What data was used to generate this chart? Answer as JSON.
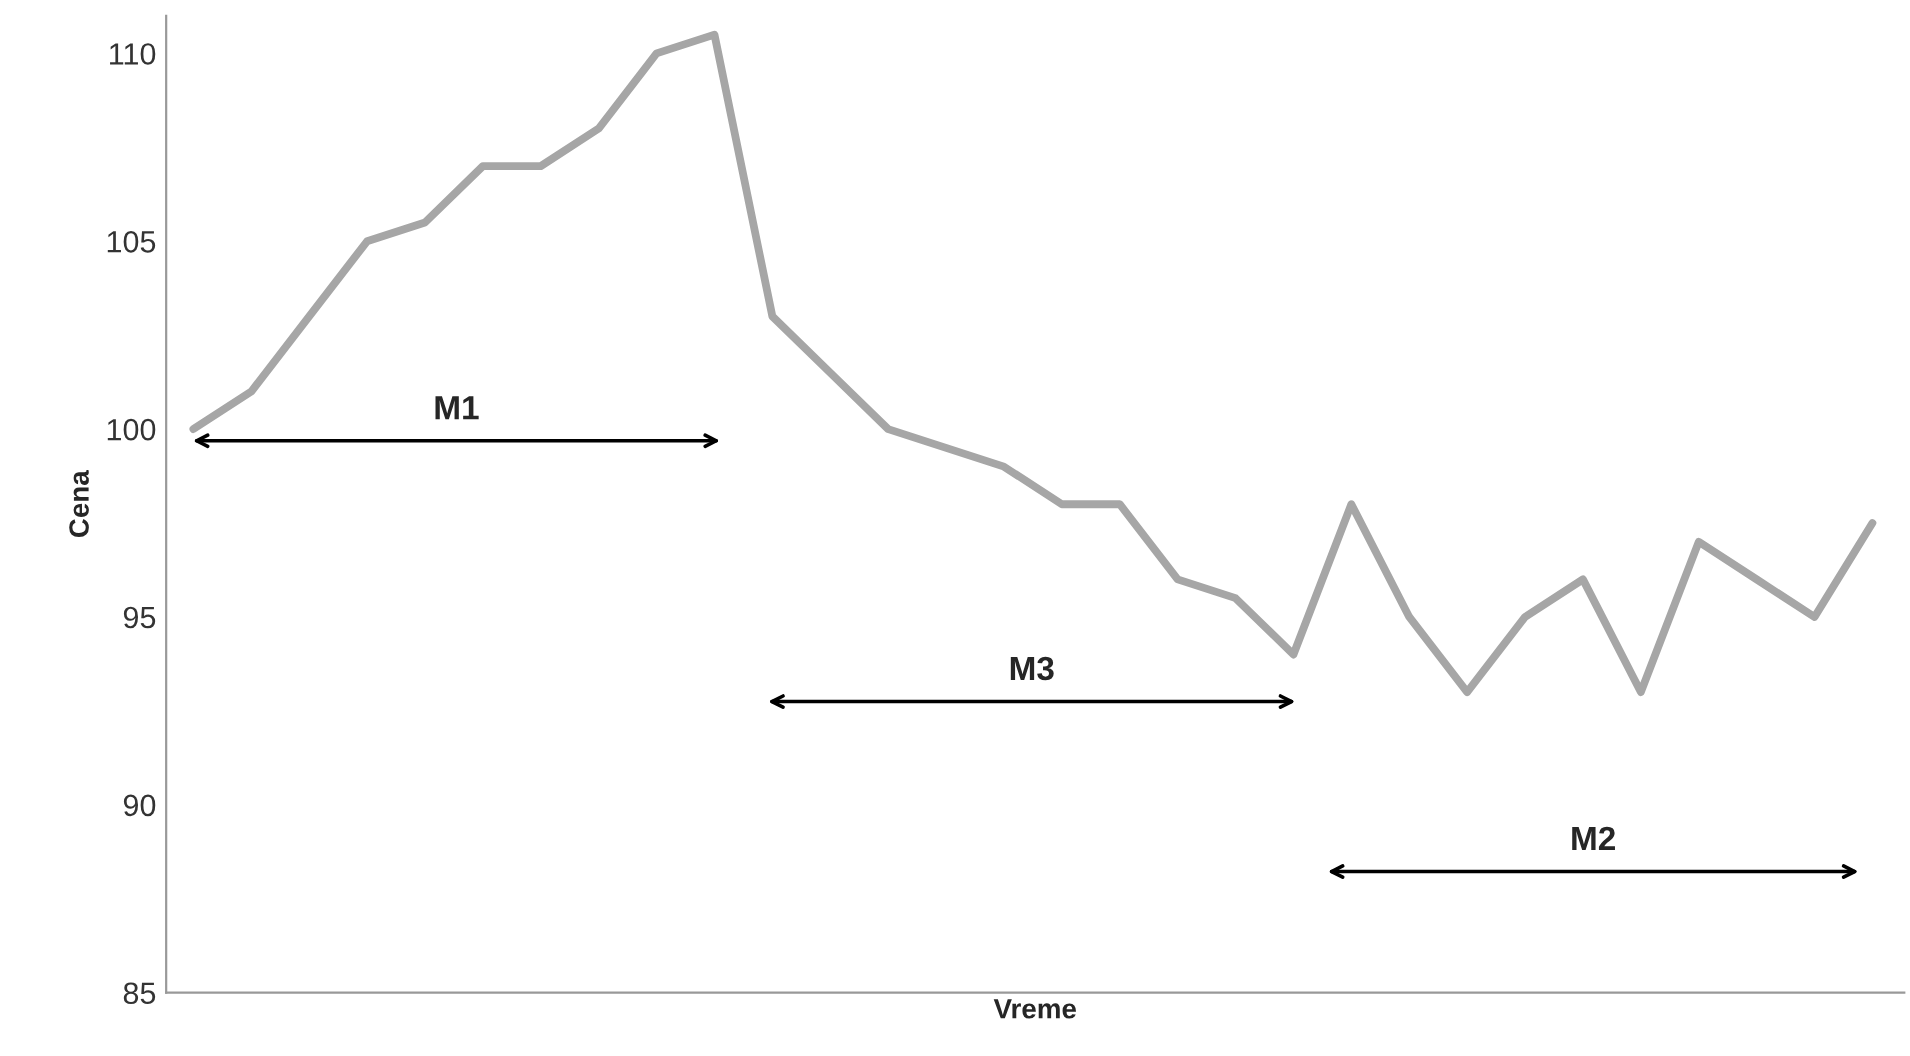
{
  "chart_data": {
    "type": "line",
    "xlabel": "Vreme",
    "ylabel": "Cena",
    "categories": [
      null,
      null,
      null,
      null,
      null,
      null,
      null,
      null,
      null,
      null,
      null,
      null,
      null,
      null,
      null,
      null,
      null,
      null,
      null,
      null,
      null,
      null,
      null,
      null,
      null,
      null,
      null,
      null,
      null,
      null
    ],
    "series": [
      {
        "color": "#a6a6a6",
        "values": [
          100,
          101,
          103,
          105,
          105.5,
          107,
          107,
          108,
          110,
          110.5,
          103,
          101.5,
          100,
          99.5,
          99,
          98,
          98,
          96,
          95.5,
          94,
          98,
          95,
          93,
          95,
          96,
          93,
          97,
          96,
          95,
          97.5
        ]
      }
    ],
    "ylim": [
      85,
      111
    ],
    "yticks": [
      85,
      90,
      95,
      100,
      105,
      110
    ],
    "grid": false,
    "legend": false,
    "marker": "none",
    "line_style": "solid",
    "tick_labels": "y",
    "annotations": [
      "M1",
      "M3",
      "M2"
    ]
  }
}
